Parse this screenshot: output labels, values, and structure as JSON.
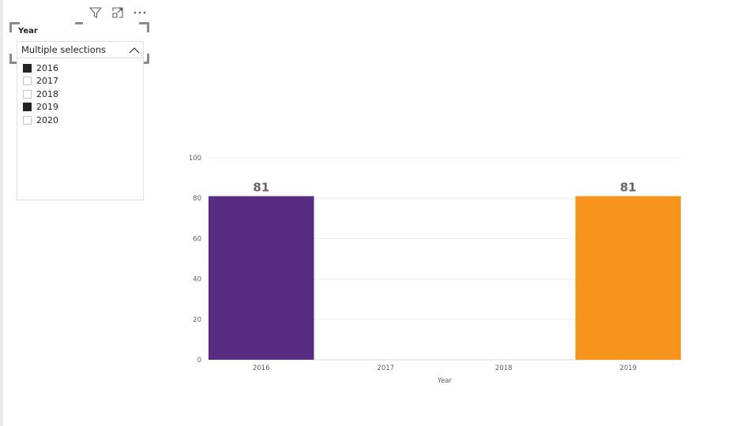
{
  "visual_header": {
    "icons": [
      "filter-icon",
      "focus-mode-icon",
      "more-options-icon"
    ]
  },
  "slicer": {
    "title": "Year",
    "dropdown_text": "Multiple selections",
    "items": [
      {
        "label": "2016",
        "checked": true
      },
      {
        "label": "2017",
        "checked": false
      },
      {
        "label": "2018",
        "checked": false
      },
      {
        "label": "2019",
        "checked": true
      },
      {
        "label": "2020",
        "checked": false
      }
    ]
  },
  "chart_data": {
    "type": "bar",
    "categories": [
      "2016",
      "2017",
      "2018",
      "2019"
    ],
    "values": [
      81,
      null,
      null,
      81
    ],
    "data_labels": [
      "81",
      "",
      "",
      "81"
    ],
    "colors": [
      "#582c83",
      "",
      "",
      "#f7941d"
    ],
    "xlabel": "Year",
    "ylabel": "",
    "title": "",
    "ylim": [
      0,
      100
    ],
    "yticks": [
      "0",
      "20",
      "40",
      "60",
      "80",
      "100"
    ],
    "grid": true,
    "legend": "none"
  }
}
